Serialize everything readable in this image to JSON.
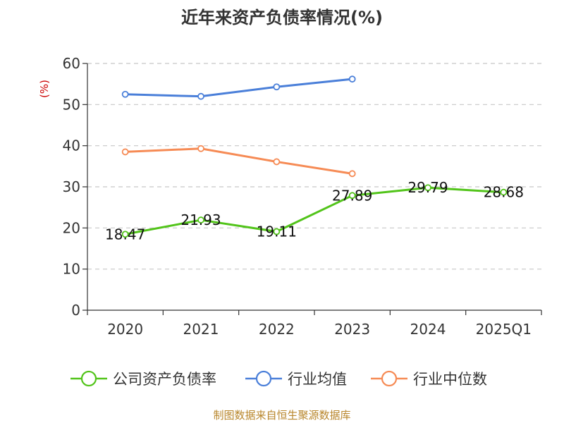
{
  "chart_data": {
    "type": "line",
    "title": "近年来资产负债率情况(%)",
    "ylabel": "(%)",
    "xlabel": "",
    "categories": [
      "2020",
      "2021",
      "2022",
      "2023",
      "2024",
      "2025Q1"
    ],
    "ylim": [
      0,
      60
    ],
    "yticks": [
      0,
      10,
      20,
      30,
      40,
      50,
      60
    ],
    "grid": true,
    "legend_position": "bottom",
    "series": [
      {
        "name": "公司资产负债率",
        "color": "#52c41a",
        "values": [
          18.47,
          21.93,
          19.11,
          27.89,
          29.79,
          28.68
        ],
        "data_labels": [
          "18.47",
          "21.93",
          "19.11",
          "27.89",
          "29.79",
          "28.68"
        ]
      },
      {
        "name": "行业均值",
        "color": "#4a7fd9",
        "values": [
          52.5,
          52.0,
          54.3,
          56.2,
          null,
          null
        ]
      },
      {
        "name": "行业中位数",
        "color": "#f68b55",
        "values": [
          38.5,
          39.3,
          36.1,
          33.2,
          null,
          null
        ]
      }
    ]
  },
  "source": "制图数据来自恒生聚源数据库"
}
